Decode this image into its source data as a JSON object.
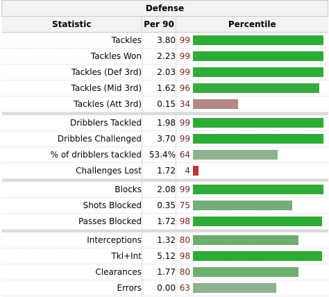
{
  "table": {
    "title": "Defense",
    "headers": {
      "statistic": "Statistic",
      "per90": "Per 90",
      "percentile": "Percentile"
    },
    "groups": [
      [
        {
          "stat": "Tackles",
          "per90": "3.80",
          "pct": "99",
          "pct_value": 99,
          "color": "#2eac37"
        },
        {
          "stat": "Tackles Won",
          "per90": "2.23",
          "pct": "99",
          "pct_value": 99,
          "color": "#2eac37"
        },
        {
          "stat": "Tackles (Def 3rd)",
          "per90": "2.03",
          "pct": "99",
          "pct_value": 99,
          "color": "#2eac37"
        },
        {
          "stat": "Tackles (Mid 3rd)",
          "per90": "1.62",
          "pct": "96",
          "pct_value": 96,
          "color": "#39ab3e"
        },
        {
          "stat": "Tackles (Att 3rd)",
          "per90": "0.15",
          "pct": "34",
          "pct_value": 34,
          "color": "#b58888"
        }
      ],
      [
        {
          "stat": "Dribblers Tackled",
          "per90": "1.98",
          "pct": "99",
          "pct_value": 99,
          "color": "#2eac37"
        },
        {
          "stat": "Dribbles Challenged",
          "per90": "3.70",
          "pct": "99",
          "pct_value": 99,
          "color": "#2eac37"
        },
        {
          "stat": "% of dribblers tackled",
          "per90": "53.4%",
          "pct": "64",
          "pct_value": 64,
          "color": "#8eb28f"
        },
        {
          "stat": "Challenges Lost",
          "per90": "1.72",
          "pct": "4",
          "pct_value": 4,
          "color": "#b8333b"
        }
      ],
      [
        {
          "stat": "Blocks",
          "per90": "2.08",
          "pct": "99",
          "pct_value": 99,
          "color": "#2eac37"
        },
        {
          "stat": "Shots Blocked",
          "per90": "0.35",
          "pct": "75",
          "pct_value": 75,
          "color": "#76ac77"
        },
        {
          "stat": "Passes Blocked",
          "per90": "1.72",
          "pct": "98",
          "pct_value": 98,
          "color": "#2eac37"
        }
      ],
      [
        {
          "stat": "Interceptions",
          "per90": "1.32",
          "pct": "80",
          "pct_value": 80,
          "color": "#6cae6e"
        },
        {
          "stat": "Tkl+Int",
          "per90": "5.12",
          "pct": "98",
          "pct_value": 98,
          "color": "#2eac37"
        },
        {
          "stat": "Clearances",
          "per90": "1.77",
          "pct": "80",
          "pct_value": 80,
          "color": "#6cae6e"
        },
        {
          "stat": "Errors",
          "per90": "0.00",
          "pct": "63",
          "pct_value": 63,
          "color": "#8eb28f"
        }
      ]
    ]
  }
}
